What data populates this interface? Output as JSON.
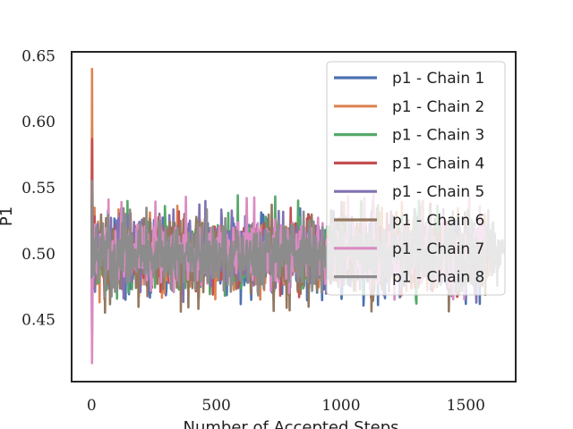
{
  "chart_data": {
    "type": "line",
    "title": "",
    "xlabel": "Number of Accepted Steps",
    "ylabel": "P1",
    "xlim": [
      -80,
      1700
    ],
    "ylim": [
      0.403,
      0.653
    ],
    "xticks": [
      0,
      500,
      1000,
      1500
    ],
    "xtick_labels": [
      "0",
      "500",
      "1000",
      "1500"
    ],
    "yticks": [
      0.45,
      0.5,
      0.55,
      0.6,
      0.65
    ],
    "ytick_labels": [
      "0.45",
      "0.50",
      "0.55",
      "0.60",
      "0.65"
    ],
    "grid": false,
    "legend_position": "top-right",
    "series": [
      {
        "name": "p1 - Chain 1",
        "color": "#4c72b0",
        "length": 1560,
        "start": 0.5,
        "spike": 0.515,
        "end": 0.5,
        "extreme_low": 0.46,
        "extreme_high": 0.535
      },
      {
        "name": "p1 - Chain 2",
        "color": "#dd8452",
        "length": 1600,
        "start": 0.5,
        "spike": 0.64,
        "end": 0.5,
        "extreme_low": 0.463,
        "extreme_high": 0.54
      },
      {
        "name": "p1 - Chain 3",
        "color": "#55a868",
        "length": 1540,
        "start": 0.5,
        "spike": 0.55,
        "end": 0.5,
        "extreme_low": 0.465,
        "extreme_high": 0.545
      },
      {
        "name": "p1 - Chain 4",
        "color": "#c44e52",
        "length": 1520,
        "start": 0.5,
        "spike": 0.587,
        "end": 0.5,
        "extreme_low": 0.465,
        "extreme_high": 0.538
      },
      {
        "name": "p1 - Chain 5",
        "color": "#8172b3",
        "length": 1550,
        "start": 0.5,
        "spike": 0.44,
        "end": 0.5,
        "extreme_low": 0.462,
        "extreme_high": 0.54
      },
      {
        "name": "p1 - Chain 6",
        "color": "#937860",
        "length": 1590,
        "start": 0.5,
        "spike": 0.545,
        "end": 0.5,
        "extreme_low": 0.455,
        "extreme_high": 0.538
      },
      {
        "name": "p1 - Chain 7",
        "color": "#da8bc3",
        "length": 1580,
        "start": 0.5,
        "spike": 0.417,
        "end": 0.5,
        "extreme_low": 0.462,
        "extreme_high": 0.546
      },
      {
        "name": "p1 - Chain 8",
        "color": "#8c8c8c",
        "length": 1650,
        "start": 0.5,
        "spike": 0.555,
        "end": 0.5,
        "extreme_low": 0.47,
        "extreme_high": 0.535
      }
    ]
  }
}
